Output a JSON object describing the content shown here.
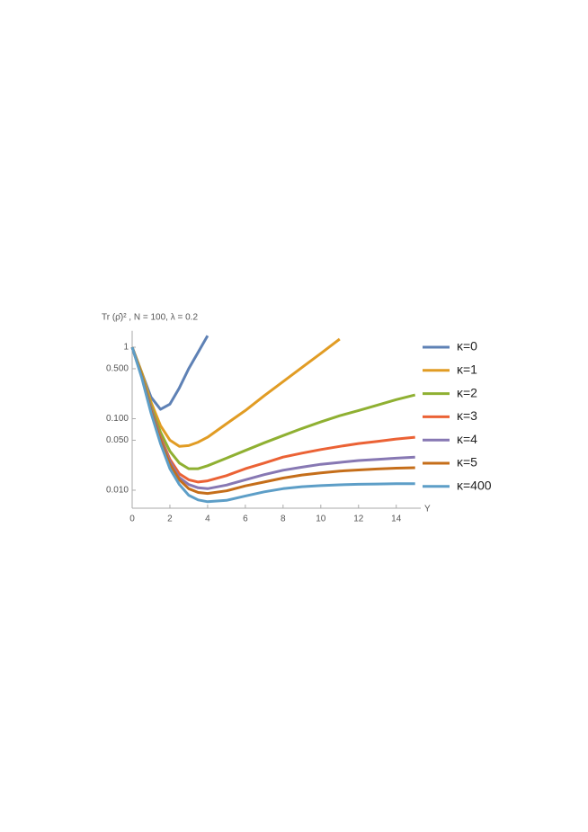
{
  "chart_data": {
    "type": "line",
    "title": "Tr (ρ̂)² , N = 100, λ = 0.2",
    "x_label": "Y",
    "log_y": true,
    "legend": "right",
    "x": [
      0,
      0.5,
      1,
      1.5,
      2,
      2.5,
      3,
      3.5,
      4,
      5,
      6,
      7,
      8,
      9,
      10,
      11,
      12,
      13,
      14,
      15
    ],
    "series": [
      {
        "name": "κ=0",
        "color": "#5e81b5",
        "values": [
          1,
          0.45,
          0.2,
          0.135,
          0.16,
          0.27,
          0.5,
          0.85,
          1.45,
          null,
          null,
          null,
          null,
          null,
          null,
          null,
          null,
          null,
          null,
          null
        ]
      },
      {
        "name": "κ=1",
        "color": "#e19c24",
        "values": [
          1,
          0.45,
          0.17,
          0.08,
          0.05,
          0.041,
          0.042,
          0.047,
          0.055,
          0.085,
          0.13,
          0.21,
          0.33,
          0.52,
          0.82,
          1.3,
          null,
          null,
          null,
          null
        ]
      },
      {
        "name": "κ=2",
        "color": "#8fb032",
        "values": [
          1,
          0.42,
          0.15,
          0.065,
          0.035,
          0.024,
          0.02,
          0.02,
          0.022,
          0.028,
          0.036,
          0.046,
          0.058,
          0.073,
          0.09,
          0.11,
          0.13,
          0.155,
          0.185,
          0.215
        ]
      },
      {
        "name": "κ=3",
        "color": "#eb6235",
        "values": [
          1,
          0.4,
          0.14,
          0.055,
          0.027,
          0.017,
          0.014,
          0.013,
          0.0135,
          0.016,
          0.02,
          0.024,
          0.029,
          0.033,
          0.037,
          0.041,
          0.045,
          0.048,
          0.052,
          0.055
        ]
      },
      {
        "name": "κ=4",
        "color": "#8778b3",
        "values": [
          1,
          0.4,
          0.14,
          0.052,
          0.025,
          0.015,
          0.012,
          0.0108,
          0.0105,
          0.0118,
          0.014,
          0.0165,
          0.019,
          0.021,
          0.023,
          0.0245,
          0.026,
          0.027,
          0.028,
          0.029
        ]
      },
      {
        "name": "κ=5",
        "color": "#c56e1a",
        "values": [
          1,
          0.4,
          0.13,
          0.05,
          0.023,
          0.014,
          0.0105,
          0.0093,
          0.009,
          0.0098,
          0.0115,
          0.013,
          0.0148,
          0.0163,
          0.0175,
          0.0185,
          0.0192,
          0.0198,
          0.0203,
          0.0206
        ]
      },
      {
        "name": "κ=400",
        "color": "#5d9ec7",
        "values": [
          1,
          0.38,
          0.12,
          0.045,
          0.02,
          0.012,
          0.0085,
          0.0073,
          0.0069,
          0.0072,
          0.0083,
          0.0095,
          0.0105,
          0.0112,
          0.0116,
          0.0119,
          0.0121,
          0.0122,
          0.0123,
          0.0123
        ]
      }
    ],
    "xlim": [
      0,
      15.3
    ],
    "xticks": [
      0,
      2,
      4,
      6,
      8,
      10,
      12,
      14
    ],
    "ylim": [
      0.0056,
      1.7
    ],
    "yticks": [
      1,
      {
        "value": 0.5,
        "label": "0.500"
      },
      {
        "value": 0.1,
        "label": "0.100"
      },
      {
        "value": 0.05,
        "label": "0.050"
      },
      {
        "value": 0.01,
        "label": "0.010"
      }
    ]
  }
}
